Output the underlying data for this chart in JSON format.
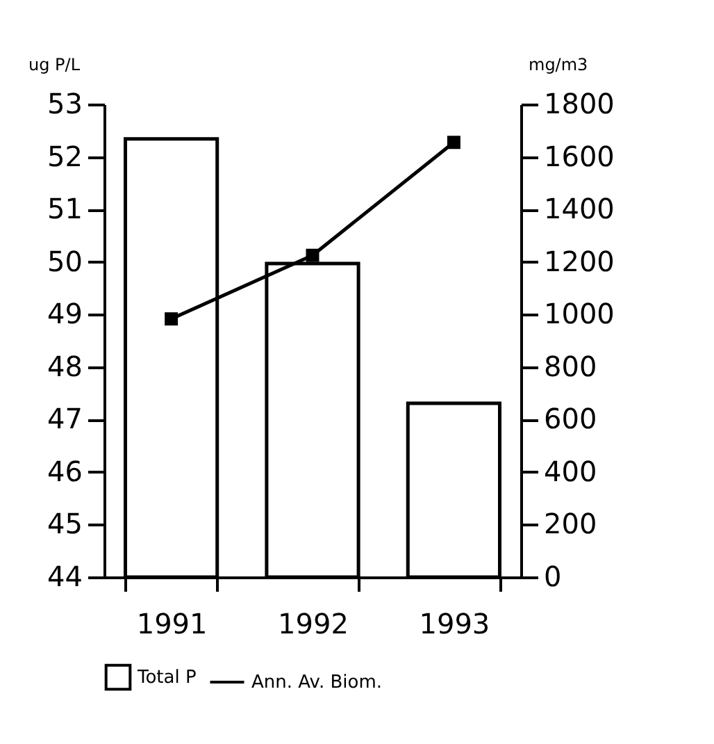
{
  "chart_data": {
    "type": "bar",
    "categories": [
      "1991",
      "1992",
      "1993"
    ],
    "series": [
      {
        "name": "Total P",
        "color": "#ffffff",
        "values": [
          52.34,
          49.97,
          47.31
        ]
      },
      {
        "name": "Ann. Av. Biom.",
        "type": "line",
        "axis": "y2",
        "color": "#000000",
        "values": [
          983,
          1225,
          1655
        ]
      }
    ],
    "ylabel": "ug P/L",
    "y2label": "mg/m3",
    "ylim": [
      44,
      53
    ],
    "yticks": [
      44,
      45,
      46,
      47,
      48,
      49,
      50,
      51,
      52,
      53
    ],
    "y2lim": [
      0,
      1800
    ],
    "y2ticks": [
      0,
      200,
      400,
      600,
      800,
      1000,
      1200,
      1400,
      1600,
      1800
    ],
    "grid": false,
    "legend": "bottom",
    "marker": "square",
    "line_style": "solid"
  }
}
